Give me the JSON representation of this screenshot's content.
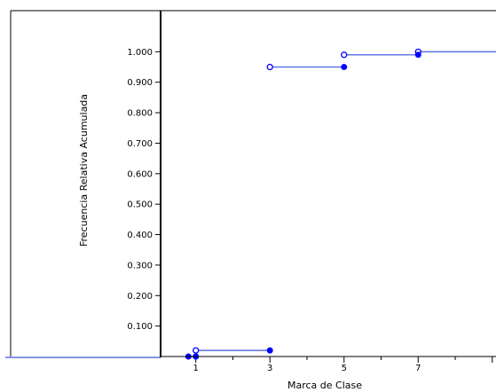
{
  "chart_data": {
    "type": "step",
    "title": "",
    "xlabel": "Marca de Clase",
    "ylabel": "Frecuencia Relativa Acumulada",
    "xlim": [
      0.05,
      9.1
    ],
    "ylim": [
      0,
      1.1
    ],
    "x_ticks": [
      1,
      3,
      5,
      7,
      9
    ],
    "x_tick_labels": [
      "1",
      "3",
      "5",
      "7",
      ""
    ],
    "y_ticks": [
      0.1,
      0.2,
      0.3,
      0.4,
      0.5,
      0.6,
      0.7,
      0.8,
      0.9,
      1.0
    ],
    "y_tick_labels": [
      "0.100",
      "0.200",
      "0.300",
      "0.400",
      "0.500",
      "0.600",
      "0.700",
      "0.800",
      "0.900",
      "1.000"
    ],
    "grid": false,
    "legend": "none",
    "color": "#0000ff",
    "line_color": "#5a6ee6",
    "series": [
      {
        "x": [
          0.8,
          1,
          3,
          5,
          7
        ],
        "y": [
          0.0,
          0.02,
          0.95,
          0.99,
          1.0
        ]
      }
    ],
    "left_extension_y": 0.0
  }
}
